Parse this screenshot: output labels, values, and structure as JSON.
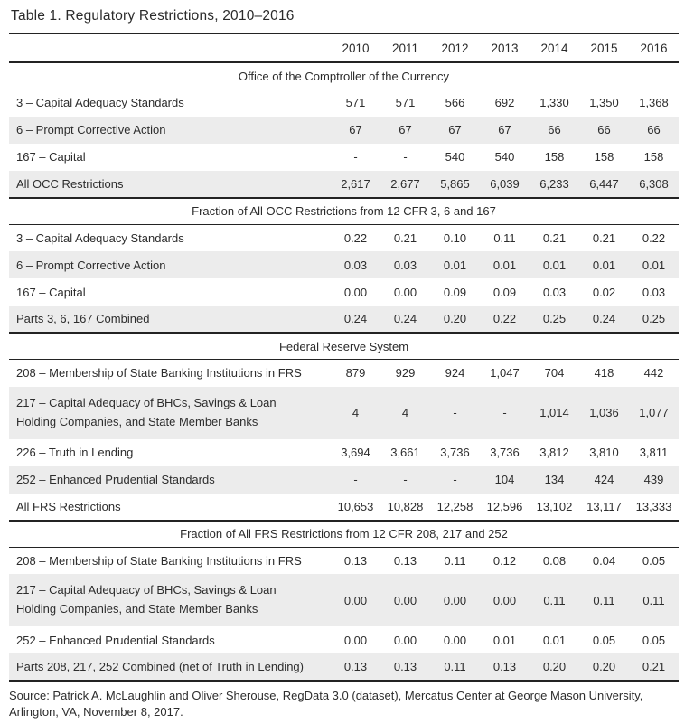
{
  "title": "Table 1. Regulatory Restrictions, 2010–2016",
  "columns": [
    "2010",
    "2011",
    "2012",
    "2013",
    "2014",
    "2015",
    "2016"
  ],
  "sections": [
    {
      "header": "Office of the Comptroller of the Currency",
      "rows": [
        {
          "label": "3 – Capital Adequacy Standards",
          "values": [
            "571",
            "571",
            "566",
            "692",
            "1,330",
            "1,350",
            "1,368"
          ]
        },
        {
          "label": "6 – Prompt Corrective Action",
          "values": [
            "67",
            "67",
            "67",
            "67",
            "66",
            "66",
            "66"
          ]
        },
        {
          "label": "167 – Capital",
          "values": [
            "-",
            "-",
            "540",
            "540",
            "158",
            "158",
            "158"
          ]
        },
        {
          "label": "All OCC Restrictions",
          "values": [
            "2,617",
            "2,677",
            "5,865",
            "6,039",
            "6,233",
            "6,447",
            "6,308"
          ]
        }
      ]
    },
    {
      "header": "Fraction of All OCC Restrictions from 12 CFR 3, 6 and 167",
      "rows": [
        {
          "label": "3 – Capital Adequacy Standards",
          "values": [
            "0.22",
            "0.21",
            "0.10",
            "0.11",
            "0.21",
            "0.21",
            "0.22"
          ]
        },
        {
          "label": "6 – Prompt Corrective Action",
          "values": [
            "0.03",
            "0.03",
            "0.01",
            "0.01",
            "0.01",
            "0.01",
            "0.01"
          ]
        },
        {
          "label": "167 – Capital",
          "values": [
            "0.00",
            "0.00",
            "0.09",
            "0.09",
            "0.03",
            "0.02",
            "0.03"
          ]
        },
        {
          "label": "Parts 3, 6, 167 Combined",
          "values": [
            "0.24",
            "0.24",
            "0.20",
            "0.22",
            "0.25",
            "0.24",
            "0.25"
          ]
        }
      ]
    },
    {
      "header": "Federal Reserve System",
      "rows": [
        {
          "label": "208 – Membership of State Banking Institutions in FRS",
          "values": [
            "879",
            "929",
            "924",
            "1,047",
            "704",
            "418",
            "442"
          ]
        },
        {
          "label": "217 – Capital Adequacy of BHCs, Savings & Loan Holding Companies, and State Member Banks",
          "values": [
            "4",
            "4",
            "-",
            "-",
            "1,014",
            "1,036",
            "1,077"
          ]
        },
        {
          "label": "226 – Truth in Lending",
          "values": [
            "3,694",
            "3,661",
            "3,736",
            "3,736",
            "3,812",
            "3,810",
            "3,811"
          ]
        },
        {
          "label": "252 – Enhanced Prudential Standards",
          "values": [
            "-",
            "-",
            "-",
            "104",
            "134",
            "424",
            "439"
          ]
        },
        {
          "label": "All FRS Restrictions",
          "values": [
            "10,653",
            "10,828",
            "12,258",
            "12,596",
            "13,102",
            "13,117",
            "13,333"
          ]
        }
      ]
    },
    {
      "header": "Fraction of All FRS Restrictions from 12 CFR 208, 217 and 252",
      "rows": [
        {
          "label": "208 – Membership of State Banking Institutions in FRS",
          "values": [
            "0.13",
            "0.13",
            "0.11",
            "0.12",
            "0.08",
            "0.04",
            "0.05"
          ]
        },
        {
          "label": "217 – Capital Adequacy of BHCs, Savings & Loan Holding Companies, and State Member Banks",
          "values": [
            "0.00",
            "0.00",
            "0.00",
            "0.00",
            "0.11",
            "0.11",
            "0.11"
          ]
        },
        {
          "label": "252 – Enhanced Prudential Standards",
          "values": [
            "0.00",
            "0.00",
            "0.00",
            "0.01",
            "0.01",
            "0.05",
            "0.05"
          ]
        },
        {
          "label": "Parts 208, 217, 252 Combined (net of Truth in Lending)",
          "values": [
            "0.13",
            "0.13",
            "0.11",
            "0.13",
            "0.20",
            "0.20",
            "0.21"
          ]
        }
      ]
    }
  ],
  "source": "Source: Patrick A. McLaughlin and Oliver Sherouse, RegData 3.0 (dataset), Mercatus Center at George Mason University, Arlington, VA, November 8, 2017.",
  "colors": {
    "rule": "#232323",
    "shaded_row": "#ececec",
    "text": "#2d2d2d"
  }
}
